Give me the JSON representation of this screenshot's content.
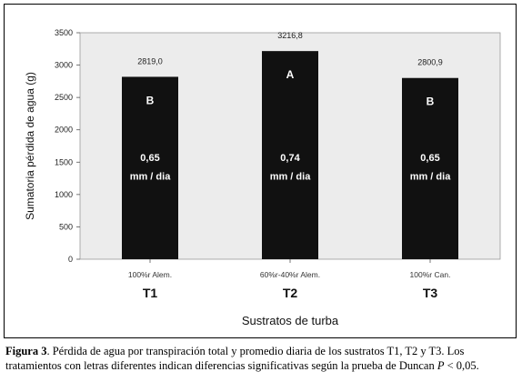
{
  "chart_data": {
    "type": "bar",
    "categories": [
      "T1",
      "T2",
      "T3"
    ],
    "category_sublabels": [
      "100%r Alem.",
      "60%r-40%r Alem.",
      "100%r Can."
    ],
    "values": [
      2819.0,
      3216.8,
      2800.9
    ],
    "value_labels": [
      "2819,0",
      "3216,8",
      "2800,9"
    ],
    "group_letters": [
      "B",
      "A",
      "B"
    ],
    "daily_rates": [
      "0,65",
      "0,74",
      "0,65"
    ],
    "rate_unit": "mm / dia",
    "xlabel": "Sustratos de turba",
    "ylabel": "Sumatoria pérdida de agua (g)",
    "ylim": [
      0,
      3500
    ],
    "yticks": [
      0,
      500,
      1000,
      1500,
      2000,
      2500,
      3000,
      3500
    ],
    "grid": false,
    "colors": {
      "plot_bg": "#ececec",
      "bar": "#111111",
      "bar_text": "#ffffff"
    }
  },
  "caption": {
    "label": "Figura 3",
    "text_before": ". Pérdida de agua por transpiración total y promedio diaria de los sustratos T1, T2 y T3. Los tratamientos con letras diferentes indican diferencias significativas según la prueba de Duncan ",
    "p_symbol": "P",
    "text_after": " < 0,05."
  }
}
